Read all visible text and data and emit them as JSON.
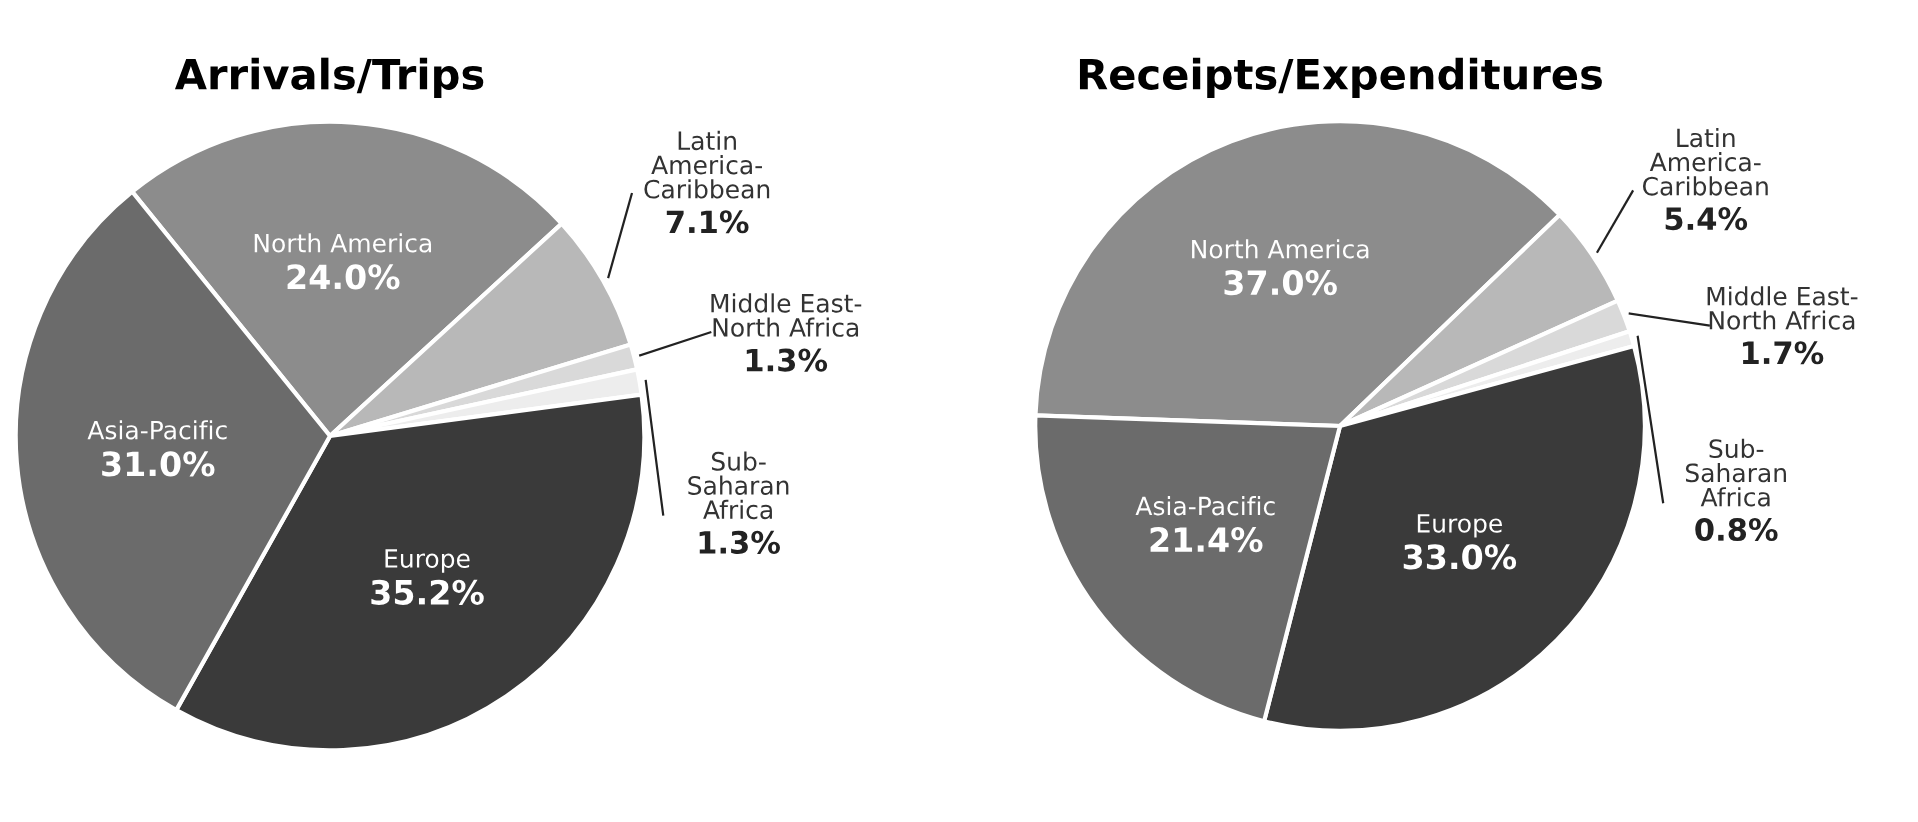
{
  "chart_data": [
    {
      "type": "pie",
      "title": "Arrivals/Trips",
      "categories": [
        "North America",
        "Latin\nAmerica-\nCaribbean",
        "Middle East-\nNorth Africa",
        "Sub-\nSaharan\nAfrica",
        "Europe",
        "Asia-Pacific"
      ],
      "values": [
        24.0,
        7.1,
        1.3,
        1.3,
        35.2,
        31.0
      ],
      "colors": [
        "#8c8c8c",
        "#b8b8b8",
        "#d9d9d9",
        "#ededed",
        "#3a3a3a",
        "#6b6b6b"
      ],
      "value_labels": [
        "24.0%",
        "7.1%",
        "1.3%",
        "1.3%",
        "35.2%",
        "31.0%"
      ]
    },
    {
      "type": "pie",
      "title": "Receipts/Expenditures",
      "categories": [
        "North America",
        "Latin\nAmerica-\nCaribbean",
        "Middle East-\nNorth Africa",
        "Sub-\nSaharan\nAfrica",
        "Europe",
        "Asia-Pacific"
      ],
      "values": [
        37.0,
        5.4,
        1.7,
        0.8,
        33.0,
        21.4
      ],
      "colors": [
        "#8c8c8c",
        "#b8b8b8",
        "#d9d9d9",
        "#ededed",
        "#3a3a3a",
        "#6b6b6b"
      ],
      "value_labels": [
        "37.0%",
        "5.4%",
        "1.7%",
        "0.8%",
        "33.0%",
        "21.4%"
      ]
    }
  ]
}
